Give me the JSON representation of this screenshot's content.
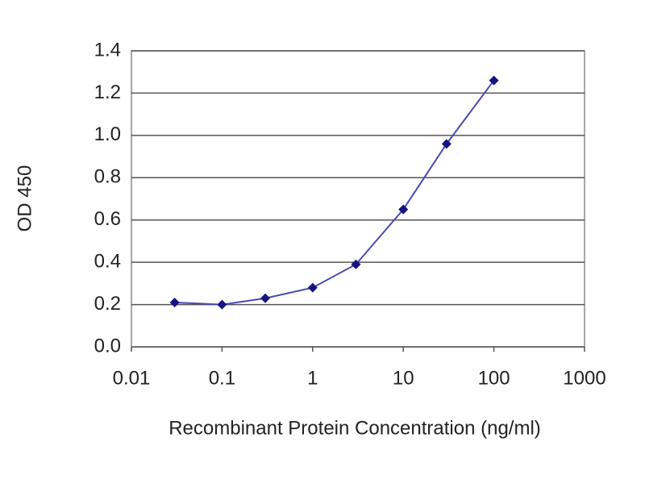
{
  "chart_data": {
    "type": "line",
    "x_label": "Recombinant Protein Concentration (ng/ml)",
    "y_label": "OD 450",
    "x": [
      0.03,
      0.1,
      0.3,
      1,
      3,
      10,
      30,
      100
    ],
    "values": [
      0.21,
      0.2,
      0.23,
      0.28,
      0.39,
      0.65,
      0.96,
      1.26
    ],
    "color": "#4a4ab4",
    "marker_color": "#141480",
    "xscale": "log",
    "xlim": [
      0.01,
      1000
    ],
    "xticks": [
      0.01,
      0.1,
      1,
      10,
      100,
      1000
    ],
    "ylim": [
      0,
      1.4
    ],
    "yticks": [
      {
        "value": 0,
        "label": "0.0"
      },
      0.2,
      0.4,
      0.6,
      0.8,
      {
        "value": 1,
        "label": "1.0"
      },
      1.2,
      1.4
    ],
    "grid": true
  }
}
